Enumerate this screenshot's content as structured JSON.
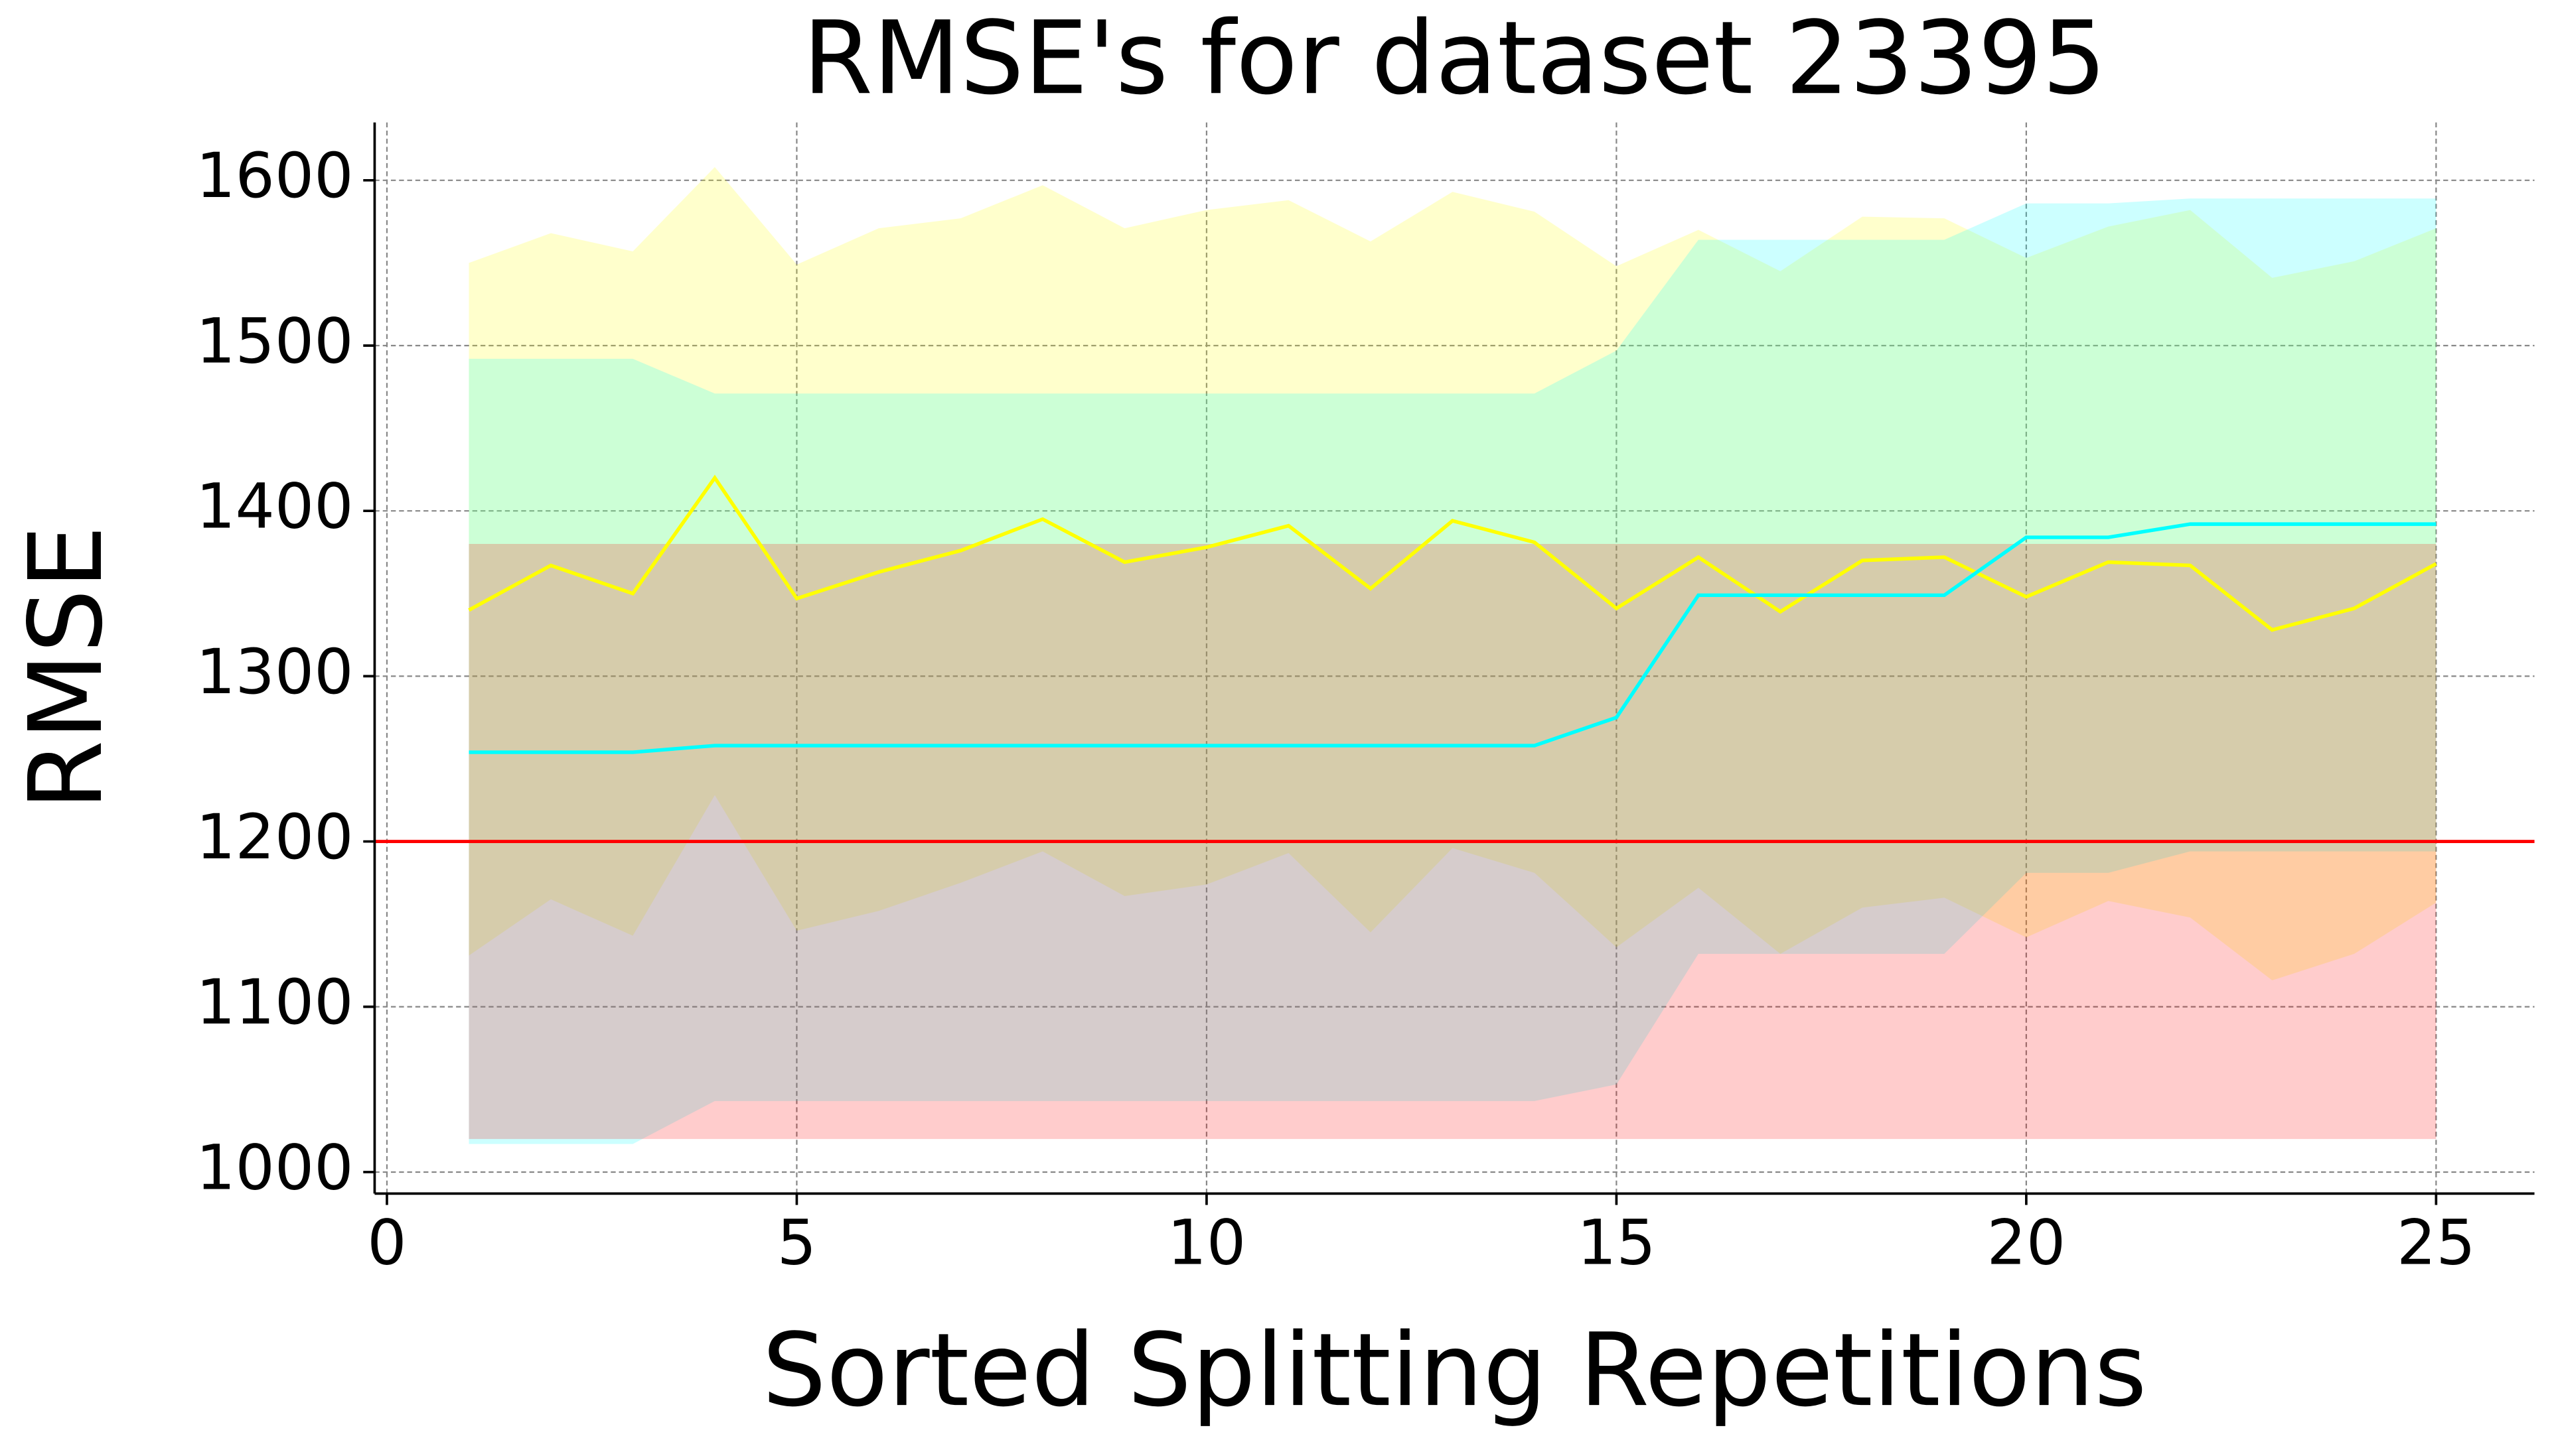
{
  "chart_data": {
    "type": "line",
    "title": "RMSE's for dataset 23395",
    "x_label": "Sorted Splitting Repetitions",
    "y_label": "RMSE",
    "x": [
      1,
      2,
      3,
      4,
      5,
      6,
      7,
      8,
      9,
      10,
      11,
      12,
      13,
      14,
      15,
      16,
      17,
      18,
      19,
      20,
      21,
      22,
      23,
      24,
      25
    ],
    "series": [
      {
        "color": "#ffff00",
        "values": [
          1340,
          1367,
          1350,
          1420,
          1347,
          1363,
          1376,
          1395,
          1369,
          1378,
          1391,
          1353,
          1394,
          1381,
          1341,
          1372,
          1339,
          1370,
          1372,
          1348,
          1369,
          1367,
          1328,
          1341,
          1368
        ],
        "upper": [
          1550,
          1568,
          1557,
          1608,
          1549,
          1571,
          1577,
          1597,
          1571,
          1582,
          1588,
          1563,
          1593,
          1581,
          1548,
          1570,
          1545,
          1578,
          1577,
          1553,
          1572,
          1582,
          1541,
          1551,
          1571
        ],
        "lower": [
          1131,
          1165,
          1143,
          1228,
          1146,
          1158,
          1175,
          1194,
          1167,
          1174,
          1193,
          1145,
          1196,
          1181,
          1136,
          1172,
          1132,
          1160,
          1166,
          1142,
          1164,
          1154,
          1116,
          1132,
          1163
        ]
      },
      {
        "color": "#00ffff",
        "values": [
          1254,
          1254,
          1254,
          1258,
          1258,
          1258,
          1258,
          1258,
          1258,
          1258,
          1258,
          1258,
          1258,
          1258,
          1275,
          1349,
          1349,
          1349,
          1349,
          1384,
          1384,
          1392,
          1392,
          1392,
          1392
        ],
        "upper": [
          1492,
          1492,
          1492,
          1471,
          1471,
          1471,
          1471,
          1471,
          1471,
          1471,
          1471,
          1471,
          1471,
          1471,
          1497,
          1564,
          1564,
          1564,
          1564,
          1586,
          1586,
          1589,
          1589,
          1589,
          1589
        ],
        "lower": [
          1017,
          1017,
          1017,
          1043,
          1043,
          1043,
          1043,
          1043,
          1043,
          1043,
          1043,
          1043,
          1043,
          1043,
          1053,
          1132,
          1132,
          1132,
          1132,
          1181,
          1181,
          1194,
          1194,
          1194,
          1194
        ]
      },
      {
        "color": "#ff0000",
        "upper": [
          1380,
          1380,
          1380,
          1380,
          1380,
          1380,
          1380,
          1380,
          1380,
          1380,
          1380,
          1380,
          1380,
          1380,
          1380,
          1380,
          1380,
          1380,
          1380,
          1380,
          1380,
          1380,
          1380,
          1380,
          1380
        ],
        "lower": [
          1020,
          1020,
          1020,
          1020,
          1020,
          1020,
          1020,
          1020,
          1020,
          1020,
          1020,
          1020,
          1020,
          1020,
          1020,
          1020,
          1020,
          1020,
          1020,
          1020,
          1020,
          1020,
          1020,
          1020,
          1020
        ]
      }
    ],
    "hline": {
      "value": 1200,
      "color": "#ff0000"
    },
    "band_alpha": 0.2,
    "xlim": [
      -0.15,
      26.2
    ],
    "ylim": [
      987,
      1635
    ],
    "xticks": [
      0,
      5,
      10,
      15,
      20,
      25
    ],
    "yticks": [
      1000,
      1100,
      1200,
      1300,
      1400,
      1500,
      1600
    ],
    "grid": true
  }
}
